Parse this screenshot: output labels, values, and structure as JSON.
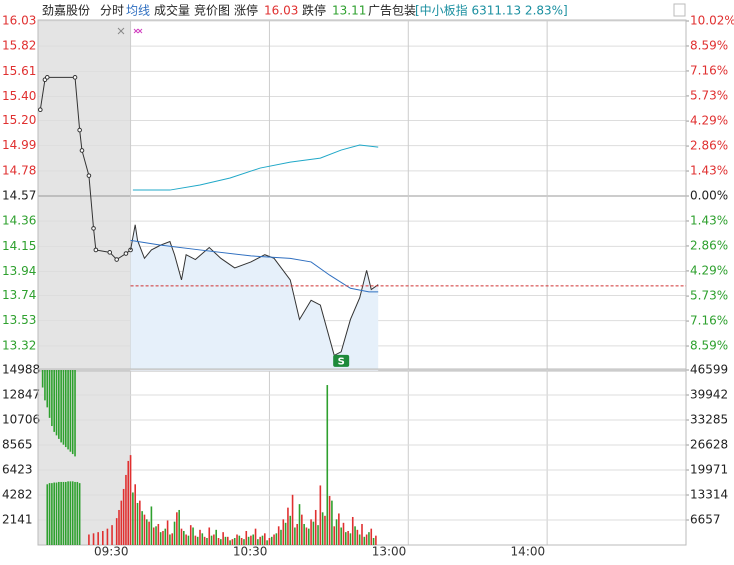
{
  "header": {
    "name": "劲嘉股份",
    "tabs": [
      "分时",
      "均线",
      "成交量",
      "竞价图"
    ],
    "limit_up_label": "涨停",
    "limit_up": 16.03,
    "limit_down_label": "跌停",
    "limit_down": 13.11,
    "industry": "广告包装",
    "index_info": "[中小板指 6311.13 2.83%]"
  },
  "chart_data": [
    {
      "type": "line",
      "xlim": [
        -40,
        240
      ],
      "xticks": [
        {
          "value": 0,
          "label": "09:30"
        },
        {
          "value": 60,
          "label": "10:30"
        },
        {
          "value": 120,
          "label": "13:00"
        },
        {
          "value": 180,
          "label": "14:00"
        }
      ],
      "ylim": [
        13.11,
        16.03
      ],
      "yticks": [
        16.03,
        15.82,
        15.61,
        {
          "value": 15.4,
          "label": "15.40"
        },
        {
          "value": 15.2,
          "label": "15.20"
        },
        14.99,
        14.78,
        14.57,
        14.36,
        14.15,
        13.94,
        13.74,
        13.53,
        13.32
      ],
      "y2lim": [
        -10.02,
        10.02
      ],
      "y2ticks": [
        {
          "value": 10.02,
          "label": "10.02%"
        },
        {
          "value": 8.59,
          "label": "8.59%"
        },
        {
          "value": 7.16,
          "label": "7.16%"
        },
        {
          "value": 5.73,
          "label": "5.73%"
        },
        {
          "value": 4.29,
          "label": "4.29%"
        },
        {
          "value": 2.86,
          "label": "2.86%"
        },
        {
          "value": 1.43,
          "label": "1.43%"
        },
        {
          "value": 0,
          "label": "0.00%"
        },
        {
          "value": -1.43,
          "label": "1.43%"
        },
        {
          "value": -2.86,
          "label": "2.86%"
        },
        {
          "value": -4.29,
          "label": "4.29%"
        },
        {
          "value": -5.73,
          "label": "5.73%"
        },
        {
          "value": -7.16,
          "label": "7.16%"
        },
        {
          "value": -8.59,
          "label": "8.59%"
        }
      ],
      "grid": true,
      "series": [
        {
          "color": "#333333",
          "markers": true,
          "x": [
            -39,
            -37,
            -36,
            -24,
            -22,
            -21,
            -18,
            -16,
            -15,
            -9,
            -6,
            -2,
            0
          ],
          "values": [
            15.29,
            15.54,
            15.56,
            15.56,
            15.12,
            14.95,
            14.74,
            14.3,
            14.12,
            14.1,
            14.04,
            14.09,
            14.12
          ]
        },
        {
          "color": "#333333",
          "area": "#e6f0fa",
          "x": [
            0,
            2,
            3,
            6,
            9,
            13,
            17,
            19,
            22,
            24,
            28,
            34,
            39,
            45,
            52,
            58,
            62,
            69,
            73,
            78,
            82,
            85,
            88,
            91,
            95,
            99,
            102,
            104,
            107
          ],
          "values": [
            14.12,
            14.33,
            14.2,
            14.05,
            14.12,
            14.16,
            14.19,
            14.08,
            13.87,
            14.08,
            14.04,
            14.14,
            14.05,
            13.97,
            14.02,
            14.08,
            14.05,
            13.87,
            13.54,
            13.7,
            13.66,
            13.45,
            13.24,
            13.27,
            13.54,
            13.72,
            13.95,
            13.79,
            13.83
          ]
        },
        {
          "color": "#2f6fc0",
          "x": [
            0,
            13,
            30,
            52,
            69,
            78,
            86,
            95,
            103,
            107
          ],
          "values": [
            14.2,
            14.16,
            14.12,
            14.07,
            14.05,
            14.02,
            13.91,
            13.8,
            13.77,
            13.77
          ]
        },
        {
          "color": "#20a8c8",
          "axis": "y2",
          "x": [
            1,
            9,
            17,
            30,
            43,
            56,
            69,
            82,
            91,
            99,
            107
          ],
          "values": [
            0.34,
            0.34,
            0.34,
            0.63,
            1.03,
            1.6,
            1.94,
            2.17,
            2.63,
            2.92,
            2.8
          ]
        }
      ],
      "hline": {
        "value": 13.82,
        "color": "#d03030"
      },
      "annotation": {
        "text": "S",
        "x": 91,
        "y": 13.27,
        "color": "#1e8a3a"
      }
    },
    {
      "type": "bar",
      "xlim": [
        -40,
        240
      ],
      "ylim": [
        0,
        14988
      ],
      "yticks": [
        14988,
        12847,
        10706,
        8565,
        6423,
        4282,
        2141
      ],
      "y2lim": [
        0,
        46599
      ],
      "y2ticks": [
        46599,
        39942,
        33285,
        26628,
        19971,
        13314,
        6657
      ],
      "series": [
        {
          "color": "#2ea02e",
          "hanging": true,
          "x": [
            -38,
            -37,
            -36,
            -35,
            -34,
            -33,
            -32,
            -31,
            -30,
            -29,
            -28,
            -27,
            -26,
            -25,
            -24
          ],
          "values": [
            1500,
            2600,
            3200,
            4100,
            4800,
            5300,
            5600,
            5900,
            6200,
            6400,
            6600,
            6800,
            7000,
            7200,
            7400
          ]
        },
        {
          "color": "#2ea02e",
          "x": [
            -36,
            -35,
            -34,
            -33,
            -32,
            -31,
            -30,
            -29,
            -28,
            -27,
            -26,
            -25,
            -24,
            -23,
            -22
          ],
          "values": [
            5200,
            5300,
            5300,
            5350,
            5350,
            5400,
            5400,
            5400,
            5400,
            5450,
            5450,
            5450,
            5400,
            5400,
            5300
          ]
        },
        {
          "color": "#e03030",
          "x": [
            -18,
            -16,
            -14,
            -12,
            -10,
            -8,
            -6,
            -5,
            -4,
            -3,
            -2,
            -1
          ],
          "values": [
            900,
            1000,
            1100,
            1200,
            1400,
            1700,
            2300,
            3000,
            3800,
            4800,
            6000,
            7200
          ]
        },
        {
          "color": "#e03030",
          "x": [
            0,
            2,
            4,
            6,
            8,
            10,
            12,
            14,
            16,
            18,
            20,
            22,
            24,
            26,
            28,
            30,
            32,
            34,
            36,
            38,
            40,
            42,
            44,
            46,
            48,
            50,
            52,
            54,
            56,
            58,
            60,
            62,
            64,
            66,
            68,
            70,
            72,
            74,
            76,
            78,
            80,
            82,
            84,
            86,
            88,
            90,
            92,
            94,
            96,
            98,
            100,
            102,
            104,
            106
          ],
          "values": [
            7700,
            5200,
            3800,
            2600,
            2000,
            1500,
            1800,
            1200,
            2100,
            1000,
            2800,
            1400,
            900,
            1700,
            800,
            1300,
            700,
            1500,
            900,
            600,
            1100,
            700,
            500,
            900,
            600,
            1200,
            800,
            1400,
            700,
            1000,
            600,
            900,
            1600,
            2200,
            3200,
            4300,
            1800,
            2600,
            1500,
            2200,
            3000,
            5100,
            2500,
            4200,
            1600,
            2700,
            1900,
            1200,
            2400,
            1300,
            1800,
            900,
            1400,
            800
          ]
        },
        {
          "color": "#2ea02e",
          "x": [
            1,
            3,
            5,
            7,
            9,
            11,
            13,
            15,
            17,
            19,
            21,
            23,
            25,
            27,
            29,
            31,
            33,
            35,
            37,
            39,
            41,
            43,
            45,
            47,
            49,
            51,
            53,
            55,
            57,
            59,
            61,
            63,
            65,
            67,
            69,
            71,
            73,
            75,
            77,
            79,
            81,
            83,
            85,
            87,
            89,
            91,
            93,
            95,
            97,
            99,
            101,
            103,
            105
          ],
          "values": [
            4500,
            3600,
            2900,
            2200,
            3300,
            1600,
            1100,
            1400,
            900,
            2000,
            3000,
            1200,
            800,
            1500,
            700,
            1000,
            600,
            800,
            1300,
            500,
            700,
            400,
            600,
            800,
            500,
            700,
            900,
            500,
            800,
            400,
            700,
            1000,
            1300,
            1900,
            2500,
            1500,
            3500,
            1800,
            1400,
            2000,
            1700,
            2800,
            13700,
            3800,
            2200,
            1500,
            1100,
            1000,
            1600,
            900,
            700,
            1100,
            600
          ]
        }
      ]
    }
  ]
}
